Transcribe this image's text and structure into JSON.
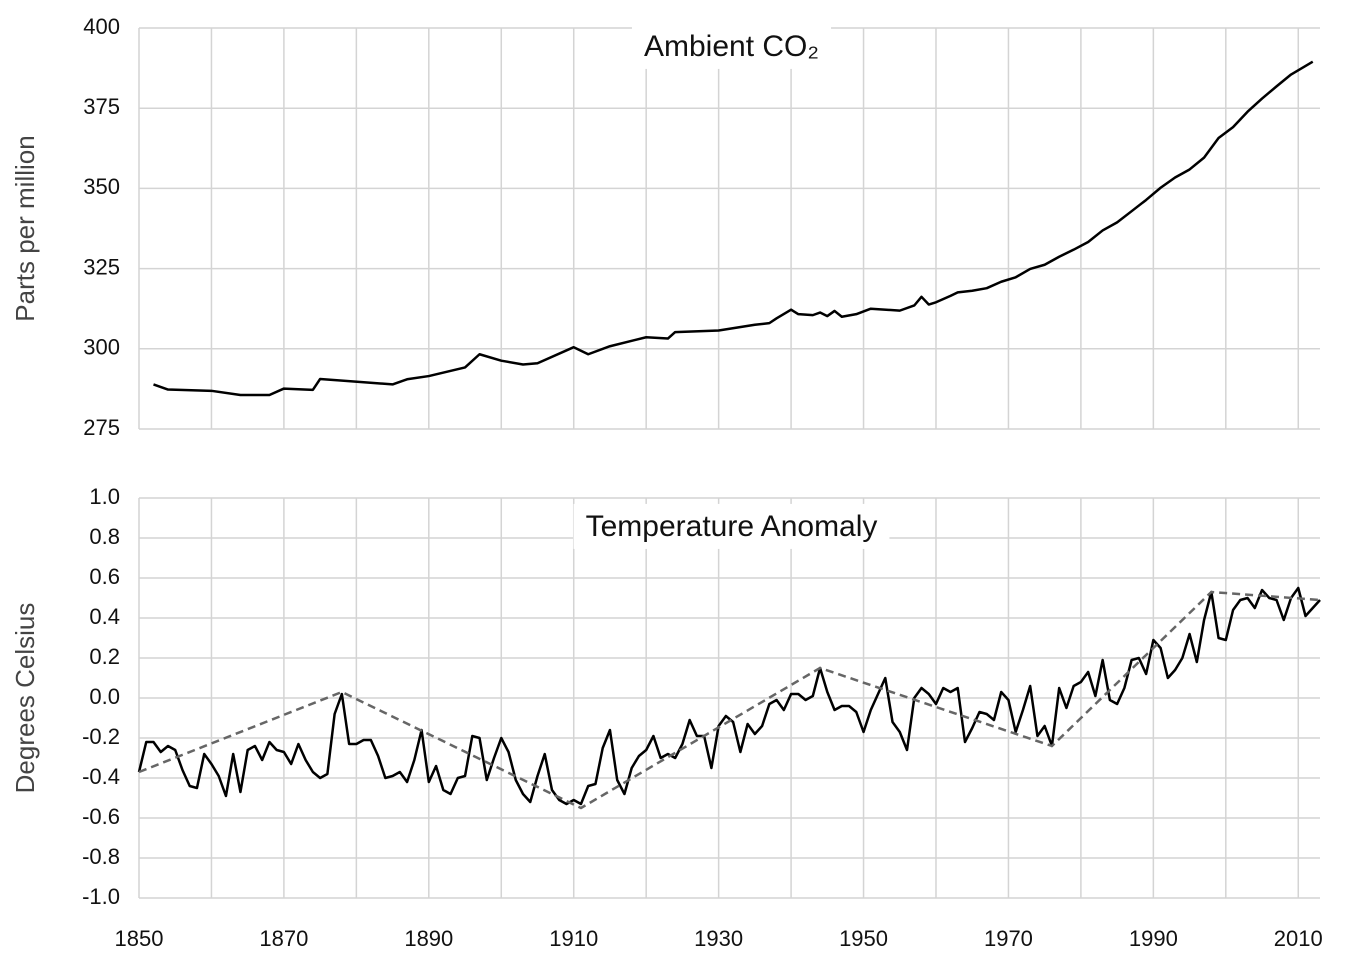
{
  "chart_data": [
    {
      "type": "line",
      "title": "Ambient CO₂",
      "ylabel": "Parts per million",
      "xlim": [
        1850,
        2013
      ],
      "ylim": [
        275,
        400
      ],
      "yticks": [
        275,
        300,
        325,
        350,
        375,
        400
      ],
      "xgrid": [
        1850,
        1860,
        1870,
        1880,
        1890,
        1900,
        1910,
        1920,
        1930,
        1940,
        1950,
        1960,
        1970,
        1980,
        1990,
        2000,
        2010
      ],
      "grid": true,
      "series": [
        {
          "color": "#000000",
          "dashed": false,
          "x": [
            1852,
            1854,
            1860,
            1864,
            1868,
            1870,
            1874,
            1875,
            1885,
            1887,
            1890,
            1895,
            1897,
            1900,
            1903,
            1905,
            1910,
            1912,
            1915,
            1920,
            1923,
            1924,
            1930,
            1935,
            1937,
            1938,
            1940,
            1941,
            1943,
            1944,
            1945,
            1946,
            1947,
            1949,
            1951,
            1955,
            1957,
            1958,
            1959,
            1960,
            1962,
            1963,
            1965,
            1967,
            1969,
            1971,
            1973,
            1975,
            1977,
            1979,
            1981,
            1983,
            1985,
            1987,
            1989,
            1991,
            1993,
            1995,
            1997,
            1999,
            2001,
            2003,
            2005,
            2007,
            2009,
            2012
          ],
          "values": [
            288.9,
            287.3,
            286.9,
            285.6,
            285.6,
            287.6,
            287.2,
            290.6,
            288.9,
            290.5,
            291.5,
            294.2,
            298.3,
            296.3,
            295.1,
            295.5,
            300.5,
            298.3,
            300.8,
            303.6,
            303.2,
            305.2,
            305.7,
            307.5,
            308.0,
            309.5,
            312.2,
            310.8,
            310.5,
            311.3,
            310.2,
            311.8,
            310.0,
            310.8,
            312.5,
            311.9,
            313.5,
            316.2,
            313.8,
            314.5,
            316.5,
            317.6,
            318.1,
            318.9,
            320.9,
            322.3,
            324.9,
            326.2,
            328.7,
            330.9,
            333.3,
            336.9,
            339.4,
            342.9,
            346.4,
            350.2,
            353.4,
            355.9,
            359.6,
            365.7,
            369.1,
            373.9,
            378.0,
            381.8,
            385.5,
            389.5
          ]
        }
      ]
    },
    {
      "type": "line",
      "title": "Temperature Anomaly",
      "ylabel": "Degrees Celsius",
      "xlim": [
        1850,
        2013
      ],
      "ylim": [
        -1,
        1
      ],
      "yticks": [
        {
          "value": -1,
          "label": "-1.0"
        },
        {
          "value": -0.8,
          "label": "-0.8"
        },
        {
          "value": -0.6,
          "label": "-0.6"
        },
        {
          "value": -0.4,
          "label": "-0.4"
        },
        {
          "value": -0.2,
          "label": "-0.2"
        },
        {
          "value": 0,
          "label": "0.0"
        },
        {
          "value": 0.2,
          "label": "0.2"
        },
        {
          "value": 0.4,
          "label": "0.4"
        },
        {
          "value": 0.6,
          "label": "0.6"
        },
        {
          "value": 0.8,
          "label": "0.8"
        },
        {
          "value": 1,
          "label": "1.0"
        }
      ],
      "xticks": [
        1850,
        1870,
        1890,
        1910,
        1930,
        1950,
        1970,
        1990,
        2010
      ],
      "xgrid": [
        1850,
        1860,
        1870,
        1880,
        1890,
        1900,
        1910,
        1920,
        1930,
        1940,
        1950,
        1960,
        1970,
        1980,
        1990,
        2000,
        2010
      ],
      "grid": true,
      "series": [
        {
          "color": "#000000",
          "dashed": false,
          "x": [
            1850,
            1851,
            1852,
            1853,
            1854,
            1855,
            1856,
            1857,
            1858,
            1859,
            1860,
            1861,
            1862,
            1863,
            1864,
            1865,
            1866,
            1867,
            1868,
            1869,
            1870,
            1871,
            1872,
            1873,
            1874,
            1875,
            1876,
            1877,
            1878,
            1879,
            1880,
            1881,
            1882,
            1883,
            1884,
            1885,
            1886,
            1887,
            1888,
            1889,
            1890,
            1891,
            1892,
            1893,
            1894,
            1895,
            1896,
            1897,
            1898,
            1899,
            1900,
            1901,
            1902,
            1903,
            1904,
            1905,
            1906,
            1907,
            1908,
            1909,
            1910,
            1911,
            1912,
            1913,
            1914,
            1915,
            1916,
            1917,
            1918,
            1919,
            1920,
            1921,
            1922,
            1923,
            1924,
            1925,
            1926,
            1927,
            1928,
            1929,
            1930,
            1931,
            1932,
            1933,
            1934,
            1935,
            1936,
            1937,
            1938,
            1939,
            1940,
            1941,
            1942,
            1943,
            1944,
            1945,
            1946,
            1947,
            1948,
            1949,
            1950,
            1951,
            1952,
            1953,
            1954,
            1955,
            1956,
            1957,
            1958,
            1959,
            1960,
            1961,
            1962,
            1963,
            1964,
            1965,
            1966,
            1967,
            1968,
            1969,
            1970,
            1971,
            1972,
            1973,
            1974,
            1975,
            1976,
            1977,
            1978,
            1979,
            1980,
            1981,
            1982,
            1983,
            1984,
            1985,
            1986,
            1987,
            1988,
            1989,
            1990,
            1991,
            1992,
            1993,
            1994,
            1995,
            1996,
            1997,
            1998,
            1999,
            2000,
            2001,
            2002,
            2003,
            2004,
            2005,
            2006,
            2007,
            2008,
            2009,
            2010,
            2011,
            2012,
            2013
          ],
          "values": [
            -0.37,
            -0.22,
            -0.22,
            -0.27,
            -0.24,
            -0.26,
            -0.36,
            -0.44,
            -0.45,
            -0.28,
            -0.33,
            -0.39,
            -0.49,
            -0.28,
            -0.47,
            -0.26,
            -0.24,
            -0.31,
            -0.22,
            -0.26,
            -0.27,
            -0.33,
            -0.23,
            -0.31,
            -0.37,
            -0.4,
            -0.38,
            -0.08,
            0.02,
            -0.23,
            -0.23,
            -0.21,
            -0.21,
            -0.29,
            -0.4,
            -0.39,
            -0.37,
            -0.42,
            -0.31,
            -0.16,
            -0.42,
            -0.34,
            -0.46,
            -0.48,
            -0.4,
            -0.39,
            -0.19,
            -0.2,
            -0.41,
            -0.3,
            -0.2,
            -0.27,
            -0.41,
            -0.48,
            -0.52,
            -0.39,
            -0.28,
            -0.46,
            -0.51,
            -0.53,
            -0.51,
            -0.53,
            -0.44,
            -0.43,
            -0.25,
            -0.16,
            -0.41,
            -0.48,
            -0.35,
            -0.29,
            -0.26,
            -0.19,
            -0.3,
            -0.28,
            -0.3,
            -0.23,
            -0.11,
            -0.19,
            -0.19,
            -0.35,
            -0.14,
            -0.09,
            -0.12,
            -0.27,
            -0.13,
            -0.18,
            -0.14,
            -0.03,
            -0.01,
            -0.06,
            0.02,
            0.02,
            -0.01,
            0.01,
            0.15,
            0.03,
            -0.06,
            -0.04,
            -0.04,
            -0.07,
            -0.17,
            -0.06,
            0.02,
            0.1,
            -0.12,
            -0.17,
            -0.26,
            0.0,
            0.05,
            0.02,
            -0.03,
            0.05,
            0.03,
            0.05,
            -0.22,
            -0.15,
            -0.07,
            -0.08,
            -0.11,
            0.03,
            -0.01,
            -0.17,
            -0.06,
            0.06,
            -0.19,
            -0.14,
            -0.24,
            0.05,
            -0.05,
            0.06,
            0.08,
            0.13,
            0.01,
            0.19,
            -0.01,
            -0.03,
            0.05,
            0.19,
            0.2,
            0.12,
            0.29,
            0.25,
            0.1,
            0.14,
            0.2,
            0.32,
            0.18,
            0.39,
            0.53,
            0.3,
            0.29,
            0.44,
            0.49,
            0.5,
            0.45,
            0.54,
            0.5,
            0.49,
            0.39,
            0.5,
            0.55,
            0.41,
            0.45,
            0.49
          ]
        },
        {
          "color": "#666666",
          "dashed": true,
          "x": [
            1850,
            1878,
            1911,
            1944,
            1976,
            1998,
            2013
          ],
          "values": [
            -0.37,
            0.03,
            -0.55,
            0.15,
            -0.24,
            0.53,
            0.49
          ]
        }
      ]
    }
  ]
}
